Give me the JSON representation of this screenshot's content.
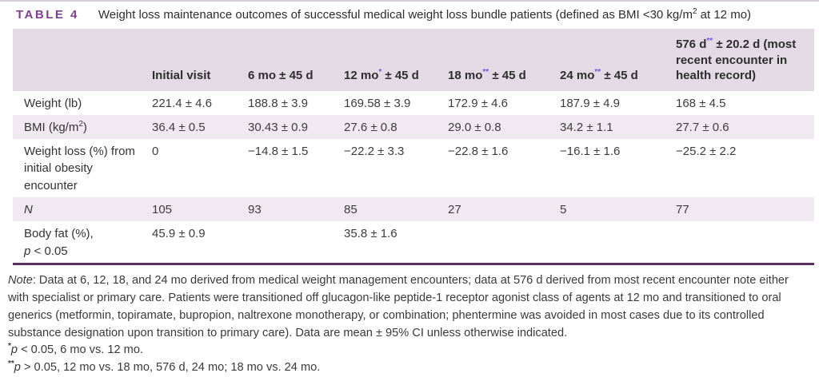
{
  "page": {
    "table_label": "TABLE 4",
    "caption": {
      "pre": "Weight loss maintenance outcomes of successful medical weight loss bundle patients (defined as BMI <30 kg/m",
      "sup": "2",
      "post": " at 12 mo)"
    }
  },
  "table": {
    "headers": [
      {
        "pre": "",
        "sup": "",
        "post": ""
      },
      {
        "pre": "Initial visit",
        "sup": "",
        "post": ""
      },
      {
        "pre": "6 mo",
        "sup": "",
        "post": " ± 45 d"
      },
      {
        "pre": "12 mo",
        "sup": "*",
        "post": " ± 45 d"
      },
      {
        "pre": "18 mo",
        "sup": "**",
        "post": " ± 45 d"
      },
      {
        "pre": "24 mo",
        "sup": "**",
        "post": " ± 45 d"
      },
      {
        "pre": "576 d",
        "sup": "**",
        "post": " ± 20.2 d (most recent encounter in health record)"
      }
    ],
    "rows": [
      {
        "label": {
          "pre": "Weight (lb)",
          "sup": "",
          "post": ""
        },
        "values": [
          "221.4 ± 4.6",
          "188.8 ± 3.9",
          "169.58 ± 3.9",
          "172.9 ± 4.6",
          "187.9 ± 4.9",
          "168 ± 4.5"
        ]
      },
      {
        "label": {
          "pre": "BMI (kg/m",
          "sup": "2",
          "post": ")"
        },
        "values": [
          "36.4 ± 0.5",
          "30.43 ± 0.9",
          "27.6 ± 0.8",
          "29.0 ± 0.8",
          "34.2 ± 1.1",
          "27.7 ± 0.6"
        ]
      },
      {
        "label": {
          "pre": "Weight loss (%) from initial obesity encounter",
          "sup": "",
          "post": ""
        },
        "values": [
          "0",
          "−14.8 ± 1.5",
          "−22.2 ± 3.3",
          "−22.8 ± 1.6",
          "−16.1 ± 1.6",
          "−25.2 ± 2.2"
        ]
      },
      {
        "label": {
          "pre": "N",
          "sup": "",
          "post": ""
        },
        "values": [
          "105",
          "93",
          "85",
          "27",
          "5",
          "77"
        ]
      },
      {
        "label": {
          "line1": "Body fat (%),",
          "p": "p",
          "rest": " < 0.05"
        },
        "values": [
          "45.9 ± 0.9",
          "",
          "35.8 ± 1.6",
          "",
          "",
          ""
        ]
      }
    ]
  },
  "notes": {
    "note_label": "Note",
    "note_text": ": Data at 6, 12, 18, and 24 mo derived from medical weight management encounters; data at 576 d derived from most recent encounter note either with specialist or primary care. Patients were transitioned off glucagon-like peptide-1 receptor agonist class of agents at 12 mo and transitioned to oral generics (metformin, topiramate, bupropion, naltrexone monotherapy, or combination; phentermine was avoided in most cases due to its controlled substance designation upon transition to primary care). Data are mean ± 95% CI unless otherwise indicated.",
    "footnote1": {
      "marker": "*",
      "p": "p",
      "text": " < 0.05, 6 mo vs. 12 mo."
    },
    "footnote2": {
      "marker": "**",
      "p": "p",
      "text": " > 0.05, 12 mo vs. 18 mo, 576 d, 24 mo; 18 mo vs. 24 mo."
    }
  },
  "colors": {
    "accent_purple": "#7e3f8f",
    "header_band": "#e3dae5",
    "row_shade": "#f1e9f1",
    "superscript_violet": "#6e5bd8",
    "rule_purple": "#5a2e63",
    "top_line": "#d8cedd"
  }
}
